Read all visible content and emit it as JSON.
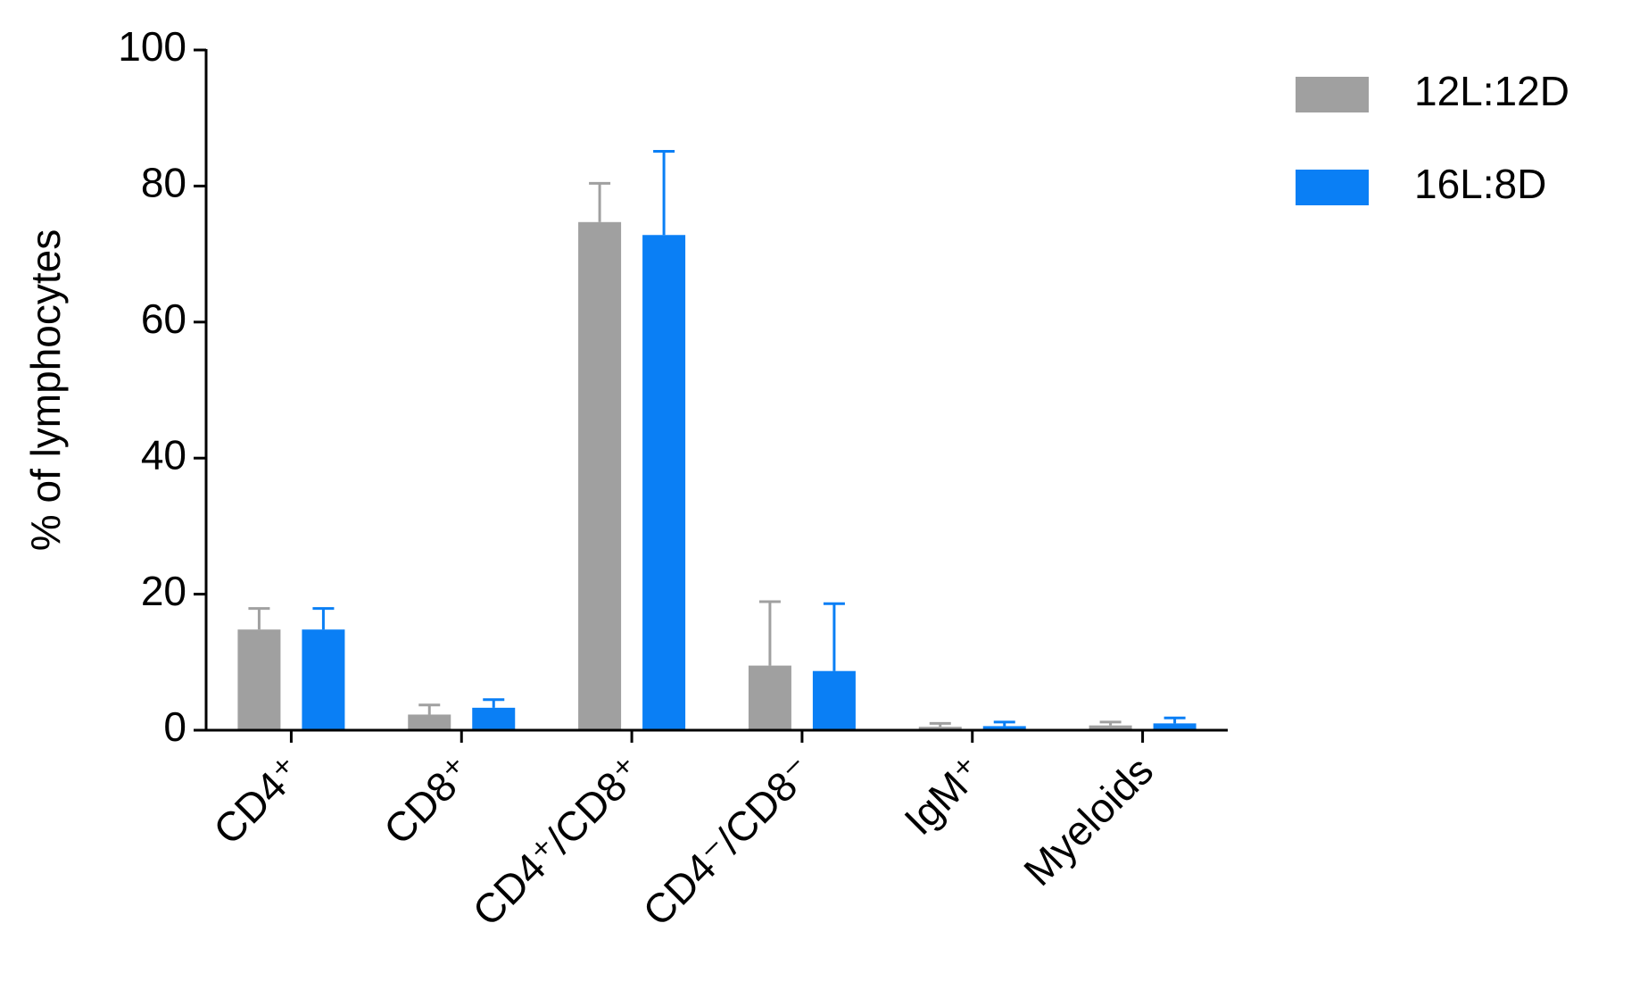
{
  "chart_data": {
    "type": "bar",
    "y_label": "% of lymphocytes",
    "categories": [
      "CD4⁺",
      "CD8⁺",
      "CD4⁺/CD8⁺",
      "CD4⁻/CD8⁻",
      "IgM⁺",
      "Myeloids"
    ],
    "series": [
      {
        "name": "12L:12D",
        "color": "#a0a0a0",
        "values": [
          14.8,
          2.3,
          74.7,
          9.5,
          0.5,
          0.7
        ],
        "errors": [
          3.1,
          1.4,
          5.7,
          9.4,
          0.5,
          0.5
        ]
      },
      {
        "name": "16L:8D",
        "color": "#0a7ff5",
        "values": [
          14.8,
          3.3,
          72.8,
          8.7,
          0.6,
          1.0
        ],
        "errors": [
          3.1,
          1.2,
          12.3,
          9.9,
          0.6,
          0.8
        ]
      }
    ],
    "ylim": [
      0,
      100
    ],
    "yticks": [
      0,
      20,
      40,
      60,
      80,
      100
    ],
    "legend": "top-right"
  }
}
